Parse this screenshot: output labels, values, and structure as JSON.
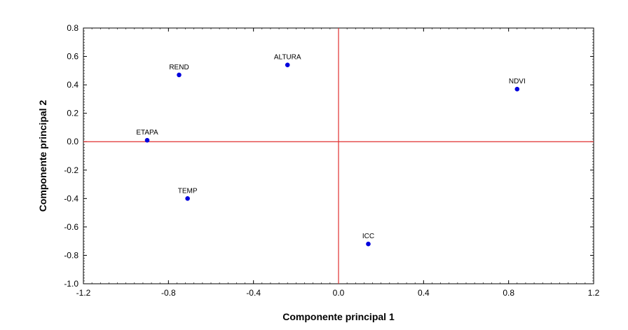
{
  "chart_data": {
    "type": "scatter",
    "title": "",
    "xlabel": "Componente principal 1",
    "ylabel": "Componente principal 2",
    "xlim": [
      -1.2,
      1.2
    ],
    "ylim": [
      -1.0,
      0.8
    ],
    "xticks": [
      -1.2,
      -0.8,
      -0.4,
      0.0,
      0.4,
      0.8,
      1.2
    ],
    "xtick_labels": [
      "-1.2",
      "-0.8",
      "-0.4",
      "0.0",
      "0.4",
      "0.8",
      "1.2"
    ],
    "yticks": [
      -1.0,
      -0.8,
      -0.6,
      -0.4,
      -0.2,
      0.0,
      0.2,
      0.4,
      0.6,
      0.8
    ],
    "ytick_labels": [
      "-1.0",
      "-0.8",
      "-0.6",
      "-0.4",
      "-0.2",
      "0.0",
      "0.2",
      "0.4",
      "0.6",
      "0.8"
    ],
    "grid": false,
    "reference_lines": {
      "x": 0.0,
      "y": 0.0
    },
    "points": [
      {
        "label": "REND",
        "x": -0.75,
        "y": 0.47
      },
      {
        "label": "ALTURA",
        "x": -0.24,
        "y": 0.54
      },
      {
        "label": "NDVI",
        "x": 0.84,
        "y": 0.37
      },
      {
        "label": "ETAPA",
        "x": -0.9,
        "y": 0.01
      },
      {
        "label": "TEMP",
        "x": -0.71,
        "y": -0.4
      },
      {
        "label": "ICC",
        "x": 0.14,
        "y": -0.72
      }
    ],
    "colors": {
      "points": "#0000dd",
      "reference_lines": "#e03030",
      "frame": "#000000"
    }
  }
}
